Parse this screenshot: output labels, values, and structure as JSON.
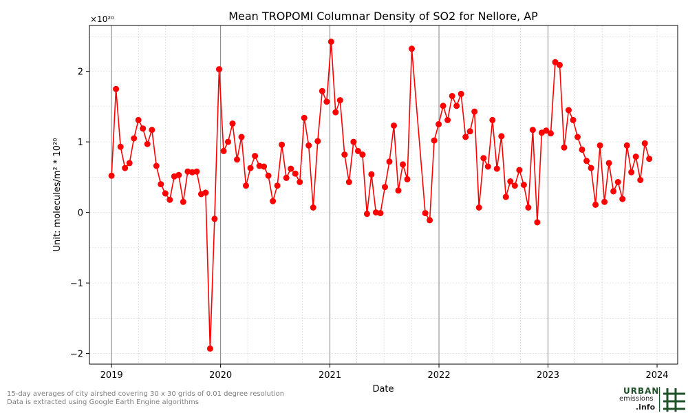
{
  "chart_data": {
    "type": "line",
    "title": "Mean TROPOMI Columnar Density of SO2 for Nellore, AP",
    "xlabel": "Date",
    "ylabel": "Unit: molecules/m² * 10²⁰",
    "offset_label": "×10²⁰",
    "x_ticks": [
      "2019",
      "2020",
      "2021",
      "2022",
      "2023",
      "2024"
    ],
    "y_ticks": [
      "−2",
      "−1",
      "0",
      "1",
      "2"
    ],
    "xlim": [
      "2018-10-19",
      "2024-03-10"
    ],
    "ylim": [
      -2.15,
      2.65
    ],
    "grid": true,
    "series": [
      {
        "color": "#ff0000",
        "points": [
          [
            "2019-01-01",
            0.52
          ],
          [
            "2019-01-16",
            1.75
          ],
          [
            "2019-01-31",
            0.93
          ],
          [
            "2019-02-15",
            0.63
          ],
          [
            "2019-03-02",
            0.7
          ],
          [
            "2019-03-17",
            1.05
          ],
          [
            "2019-04-01",
            1.31
          ],
          [
            "2019-04-16",
            1.19
          ],
          [
            "2019-05-01",
            0.97
          ],
          [
            "2019-05-16",
            1.17
          ],
          [
            "2019-05-31",
            0.66
          ],
          [
            "2019-06-15",
            0.4
          ],
          [
            "2019-06-30",
            0.27
          ],
          [
            "2019-07-15",
            0.18
          ],
          [
            "2019-07-30",
            0.51
          ],
          [
            "2019-08-14",
            0.53
          ],
          [
            "2019-08-29",
            0.15
          ],
          [
            "2019-09-13",
            0.58
          ],
          [
            "2019-09-28",
            0.57
          ],
          [
            "2019-10-13",
            0.58
          ],
          [
            "2019-10-28",
            0.26
          ],
          [
            "2019-11-12",
            0.28
          ],
          [
            "2019-11-27",
            -1.93
          ],
          [
            "2019-12-12",
            -0.09
          ],
          [
            "2019-12-27",
            2.03
          ],
          [
            "2020-01-11",
            0.87
          ],
          [
            "2020-01-26",
            1.0
          ],
          [
            "2020-02-10",
            1.26
          ],
          [
            "2020-02-25",
            0.75
          ],
          [
            "2020-03-11",
            1.07
          ],
          [
            "2020-03-26",
            0.38
          ],
          [
            "2020-04-10",
            0.63
          ],
          [
            "2020-04-25",
            0.8
          ],
          [
            "2020-05-10",
            0.66
          ],
          [
            "2020-05-25",
            0.65
          ],
          [
            "2020-06-09",
            0.52
          ],
          [
            "2020-06-24",
            0.16
          ],
          [
            "2020-07-09",
            0.38
          ],
          [
            "2020-07-24",
            0.96
          ],
          [
            "2020-08-08",
            0.49
          ],
          [
            "2020-08-23",
            0.62
          ],
          [
            "2020-09-07",
            0.55
          ],
          [
            "2020-09-22",
            0.43
          ],
          [
            "2020-10-07",
            1.34
          ],
          [
            "2020-10-22",
            0.95
          ],
          [
            "2020-11-06",
            0.07
          ],
          [
            "2020-11-21",
            1.01
          ],
          [
            "2020-12-06",
            1.72
          ],
          [
            "2020-12-21",
            1.57
          ],
          [
            "2021-01-05",
            2.42
          ],
          [
            "2021-01-20",
            1.42
          ],
          [
            "2021-02-04",
            1.59
          ],
          [
            "2021-02-19",
            0.82
          ],
          [
            "2021-03-06",
            0.43
          ],
          [
            "2021-03-21",
            1.0
          ],
          [
            "2021-04-05",
            0.87
          ],
          [
            "2021-04-20",
            0.82
          ],
          [
            "2021-05-05",
            -0.02
          ],
          [
            "2021-05-20",
            0.54
          ],
          [
            "2021-06-04",
            0.0
          ],
          [
            "2021-06-19",
            -0.01
          ],
          [
            "2021-07-04",
            0.36
          ],
          [
            "2021-07-19",
            0.72
          ],
          [
            "2021-08-03",
            1.23
          ],
          [
            "2021-08-18",
            0.31
          ],
          [
            "2021-09-02",
            0.68
          ],
          [
            "2021-09-17",
            0.47
          ],
          [
            "2021-10-02",
            2.32
          ],
          [
            "2021-11-16",
            -0.01
          ],
          [
            "2021-12-01",
            -0.11
          ],
          [
            "2021-12-16",
            1.02
          ],
          [
            "2021-12-31",
            1.25
          ],
          [
            "2022-01-15",
            1.51
          ],
          [
            "2022-01-30",
            1.31
          ],
          [
            "2022-02-14",
            1.65
          ],
          [
            "2022-03-01",
            1.51
          ],
          [
            "2022-03-16",
            1.68
          ],
          [
            "2022-03-31",
            1.07
          ],
          [
            "2022-04-15",
            1.15
          ],
          [
            "2022-04-30",
            1.43
          ],
          [
            "2022-05-15",
            0.07
          ],
          [
            "2022-05-30",
            0.77
          ],
          [
            "2022-06-14",
            0.65
          ],
          [
            "2022-06-29",
            1.31
          ],
          [
            "2022-07-14",
            0.62
          ],
          [
            "2022-07-29",
            1.08
          ],
          [
            "2022-08-13",
            0.22
          ],
          [
            "2022-08-28",
            0.44
          ],
          [
            "2022-09-12",
            0.38
          ],
          [
            "2022-09-27",
            0.6
          ],
          [
            "2022-10-12",
            0.39
          ],
          [
            "2022-10-27",
            0.07
          ],
          [
            "2022-11-11",
            1.17
          ],
          [
            "2022-11-26",
            -0.14
          ],
          [
            "2022-12-11",
            1.13
          ],
          [
            "2022-12-26",
            1.16
          ],
          [
            "2023-01-10",
            1.12
          ],
          [
            "2023-01-25",
            2.13
          ],
          [
            "2023-02-09",
            2.09
          ],
          [
            "2023-02-24",
            0.92
          ],
          [
            "2023-03-11",
            1.45
          ],
          [
            "2023-03-26",
            1.31
          ],
          [
            "2023-04-10",
            1.07
          ],
          [
            "2023-04-25",
            0.89
          ],
          [
            "2023-05-10",
            0.73
          ],
          [
            "2023-05-25",
            0.63
          ],
          [
            "2023-06-09",
            0.11
          ],
          [
            "2023-06-24",
            0.95
          ],
          [
            "2023-07-09",
            0.15
          ],
          [
            "2023-07-24",
            0.7
          ],
          [
            "2023-08-08",
            0.3
          ],
          [
            "2023-08-23",
            0.43
          ],
          [
            "2023-09-07",
            0.19
          ],
          [
            "2023-09-22",
            0.95
          ],
          [
            "2023-10-07",
            0.57
          ],
          [
            "2023-10-22",
            0.79
          ],
          [
            "2023-11-06",
            0.46
          ],
          [
            "2023-11-21",
            0.98
          ],
          [
            "2023-12-06",
            0.76
          ]
        ]
      }
    ]
  },
  "footnotes": [
    "15-day averages of city airshed covering 30 x 30 grids of 0.01 degree resolution",
    "Data is extracted using Google Earth Engine algorithms"
  ],
  "logo": {
    "line1": "URBAN",
    "line2": "emissions",
    "line3": ".info",
    "color": "#1e5128"
  }
}
